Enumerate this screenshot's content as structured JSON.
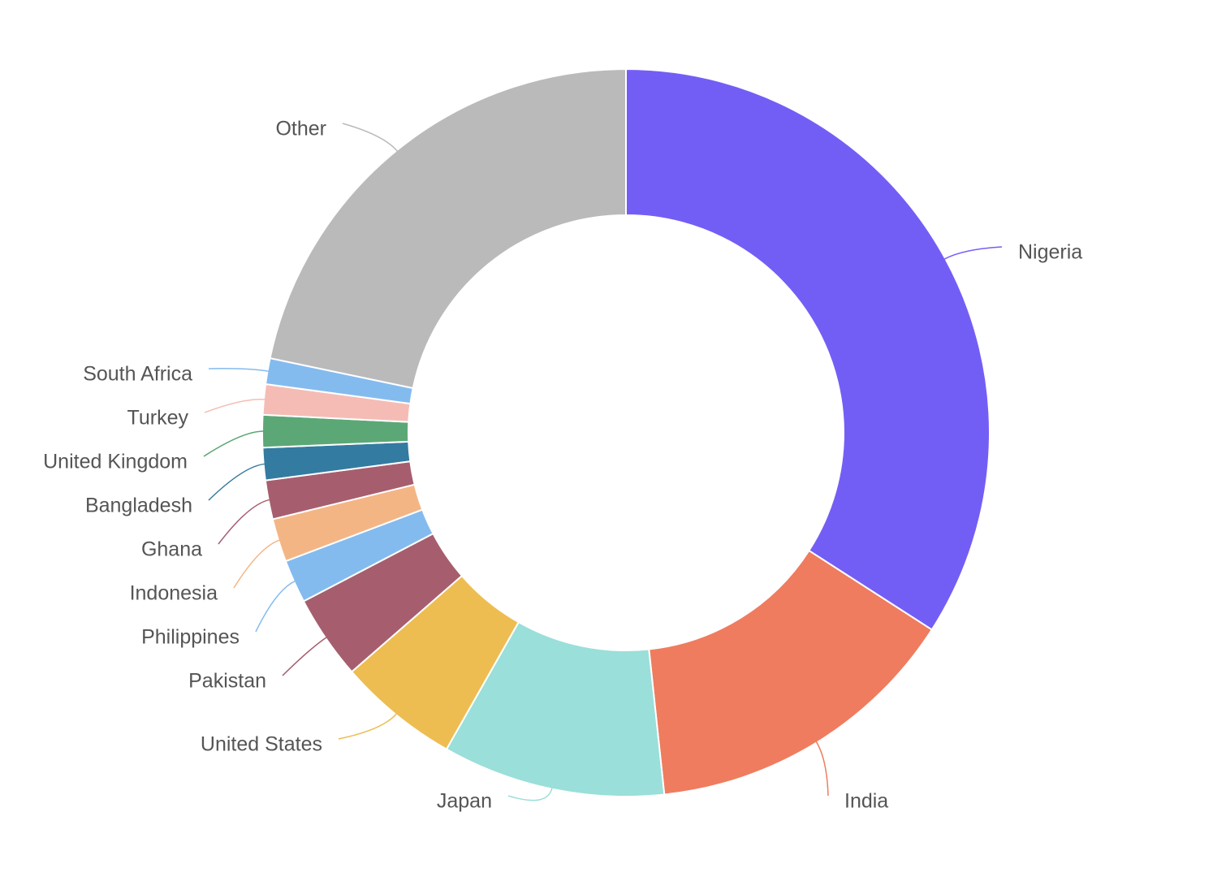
{
  "chart_data": {
    "type": "pie",
    "variant": "donut",
    "title": "",
    "legend": "none",
    "labels_position": "outside-with-leader-lines",
    "slices": [
      {
        "label": "Nigeria",
        "value": 35.5,
        "color": "#735ef5"
      },
      {
        "label": "India",
        "value": 14.8,
        "color": "#ef7c5f"
      },
      {
        "label": "Japan",
        "value": 10.3,
        "color": "#9adfd9"
      },
      {
        "label": "United States",
        "value": 5.6,
        "color": "#edbd52"
      },
      {
        "label": "Pakistan",
        "value": 3.9,
        "color": "#a65e6e"
      },
      {
        "label": "Philippines",
        "value": 2.0,
        "color": "#84bbef"
      },
      {
        "label": "Indonesia",
        "value": 2.0,
        "color": "#f4b585"
      },
      {
        "label": "Ghana",
        "value": 1.8,
        "color": "#a65e6e"
      },
      {
        "label": "Bangladesh",
        "value": 1.5,
        "color": "#347ba1"
      },
      {
        "label": "United Kingdom",
        "value": 1.5,
        "color": "#5ba876"
      },
      {
        "label": "Turkey",
        "value": 1.4,
        "color": "#f5bcb5"
      },
      {
        "label": "South Africa",
        "value": 1.2,
        "color": "#84bbef"
      },
      {
        "label": "Other",
        "value": 22.6,
        "color": "#bababa"
      }
    ]
  }
}
